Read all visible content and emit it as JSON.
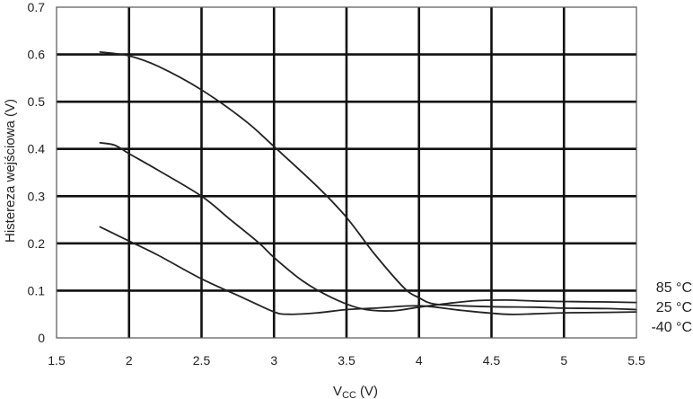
{
  "chart_data": {
    "type": "line",
    "title": "",
    "xlabel_main": "V",
    "xlabel_sub": "CC",
    "xlabel_unit": "(V)",
    "ylabel": "Histereza wejściowa (V)",
    "xlim": [
      1.5,
      5.5
    ],
    "ylim": [
      0,
      0.7
    ],
    "x_ticks": [
      1.5,
      2,
      2.5,
      3,
      3.5,
      4,
      4.5,
      5,
      5.5
    ],
    "x_tick_labels": [
      "1.5",
      "2",
      "2.5",
      "3",
      "3.5",
      "4",
      "4.5",
      "5",
      "5.5"
    ],
    "y_ticks": [
      0,
      0.1,
      0.2,
      0.3,
      0.4,
      0.5,
      0.6,
      0.7
    ],
    "y_tick_labels": [
      "0",
      "0.1",
      "0.2",
      "0.3",
      "0.4",
      "0.5",
      "0.6",
      "0.7"
    ],
    "grid": true,
    "series": [
      {
        "name": "85 °C",
        "x": [
          1.8,
          2.0,
          2.2,
          2.5,
          2.8,
          3.0,
          3.3,
          3.5,
          3.7,
          3.9,
          4.0,
          4.1,
          4.3,
          4.5,
          4.8,
          5.0,
          5.3,
          5.5
        ],
        "y": [
          0.605,
          0.597,
          0.575,
          0.525,
          0.46,
          0.405,
          0.32,
          0.255,
          0.175,
          0.105,
          0.085,
          0.072,
          0.068,
          0.066,
          0.065,
          0.063,
          0.062,
          0.06
        ]
      },
      {
        "name": "25 °C",
        "x": [
          1.8,
          1.9,
          2.0,
          2.2,
          2.5,
          2.7,
          2.9,
          3.0,
          3.2,
          3.4,
          3.6,
          3.8,
          4.0,
          4.2,
          4.4,
          4.6,
          4.8,
          5.0,
          5.3,
          5.5
        ],
        "y": [
          0.413,
          0.408,
          0.39,
          0.355,
          0.3,
          0.25,
          0.2,
          0.17,
          0.12,
          0.085,
          0.062,
          0.057,
          0.065,
          0.073,
          0.079,
          0.08,
          0.078,
          0.077,
          0.076,
          0.075
        ]
      },
      {
        "name": "-40 °C",
        "x": [
          1.8,
          2.0,
          2.2,
          2.5,
          2.8,
          3.0,
          3.1,
          3.3,
          3.5,
          3.7,
          4.0,
          4.3,
          4.6,
          4.8,
          5.0,
          5.3,
          5.5
        ],
        "y": [
          0.235,
          0.205,
          0.175,
          0.125,
          0.083,
          0.055,
          0.05,
          0.053,
          0.06,
          0.063,
          0.068,
          0.058,
          0.05,
          0.051,
          0.053,
          0.054,
          0.055
        ]
      }
    ]
  }
}
